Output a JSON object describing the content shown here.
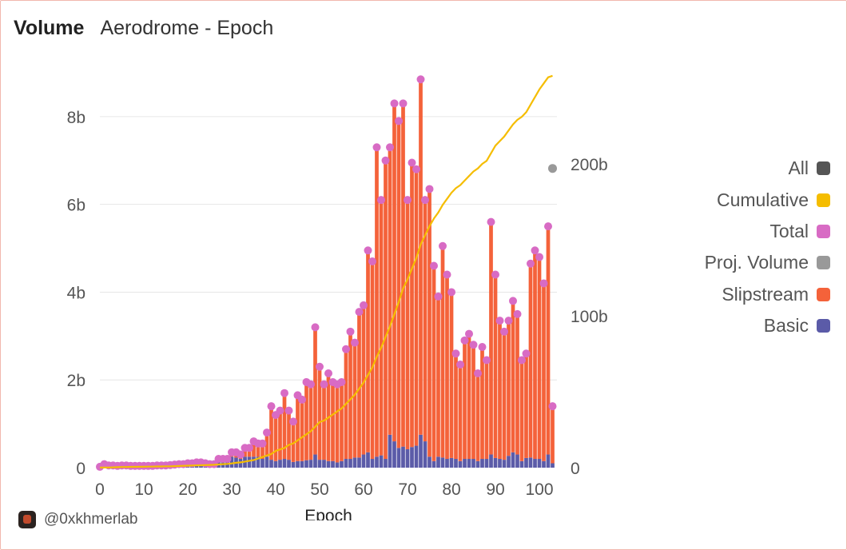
{
  "header": {
    "title": "Volume",
    "subtitle": "Aerodrome - Epoch"
  },
  "footer": {
    "handle": "@0xkhmerlab"
  },
  "legend": [
    {
      "label": "All",
      "color": "#555555"
    },
    {
      "label": "Cumulative",
      "color": "#f5bd00"
    },
    {
      "label": "Total",
      "color": "#d86bc4"
    },
    {
      "label": "Proj. Volume",
      "color": "#999999"
    },
    {
      "label": "Slipstream",
      "color": "#f4623a"
    },
    {
      "label": "Basic",
      "color": "#5b5ba8"
    }
  ],
  "chart_data": {
    "type": "bar",
    "xlabel": "Epoch",
    "ylabel": "",
    "xlim": [
      0,
      104
    ],
    "ylim": [
      0,
      9
    ],
    "y2lim": [
      0,
      260
    ],
    "x_ticks": [
      "0",
      "10",
      "20",
      "30",
      "40",
      "50",
      "60",
      "70",
      "80",
      "90",
      "100"
    ],
    "y_ticks": [
      "0",
      "2b",
      "4b",
      "6b",
      "8b"
    ],
    "y2_ticks": [
      "0",
      "100b",
      "200b"
    ],
    "grid": true,
    "legend_position": "right",
    "x": [
      0,
      1,
      2,
      3,
      4,
      5,
      6,
      7,
      8,
      9,
      10,
      11,
      12,
      13,
      14,
      15,
      16,
      17,
      18,
      19,
      20,
      21,
      22,
      23,
      24,
      25,
      26,
      27,
      28,
      29,
      30,
      31,
      32,
      33,
      34,
      35,
      36,
      37,
      38,
      39,
      40,
      41,
      42,
      43,
      44,
      45,
      46,
      47,
      48,
      49,
      50,
      51,
      52,
      53,
      54,
      55,
      56,
      57,
      58,
      59,
      60,
      61,
      62,
      63,
      64,
      65,
      66,
      67,
      68,
      69,
      70,
      71,
      72,
      73,
      74,
      75,
      76,
      77,
      78,
      79,
      80,
      81,
      82,
      83,
      84,
      85,
      86,
      87,
      88,
      89,
      90,
      91,
      92,
      93,
      94,
      95,
      96,
      97,
      98,
      99,
      100,
      101,
      102,
      103
    ],
    "series": [
      {
        "name": "Total",
        "values": [
          0.02,
          0.08,
          0.05,
          0.05,
          0.04,
          0.05,
          0.05,
          0.04,
          0.04,
          0.04,
          0.04,
          0.04,
          0.04,
          0.05,
          0.05,
          0.05,
          0.06,
          0.07,
          0.08,
          0.08,
          0.1,
          0.1,
          0.12,
          0.12,
          0.1,
          0.08,
          0.08,
          0.2,
          0.2,
          0.2,
          0.35,
          0.35,
          0.3,
          0.45,
          0.45,
          0.6,
          0.55,
          0.55,
          0.8,
          1.4,
          1.2,
          1.3,
          1.7,
          1.3,
          1.05,
          1.65,
          1.55,
          1.95,
          1.9,
          3.2,
          2.3,
          1.9,
          2.15,
          1.95,
          1.9,
          1.95,
          2.7,
          3.1,
          2.85,
          3.55,
          3.7,
          4.95,
          4.7,
          7.3,
          6.1,
          7.0,
          7.3,
          8.3,
          7.9,
          8.3,
          6.1,
          6.95,
          6.8,
          8.85,
          6.1,
          6.35,
          4.6,
          3.9,
          5.05,
          4.4,
          4.0,
          2.6,
          2.35,
          2.9,
          3.05,
          2.8,
          2.15,
          2.75,
          2.45,
          5.6,
          4.4,
          3.35,
          3.1,
          3.35,
          3.8,
          3.5,
          2.45,
          2.6,
          4.65,
          4.95,
          4.8,
          4.2,
          5.5,
          1.4
        ]
      },
      {
        "name": "Slipstream",
        "values": [
          0,
          0,
          0,
          0,
          0,
          0,
          0,
          0,
          0,
          0,
          0,
          0,
          0,
          0,
          0,
          0,
          0,
          0,
          0,
          0,
          0,
          0,
          0,
          0,
          0,
          0,
          0,
          0.05,
          0.05,
          0.08,
          0.1,
          0.12,
          0.1,
          0.2,
          0.2,
          0.35,
          0.3,
          0.35,
          0.55,
          1.22,
          1.05,
          1.12,
          1.5,
          1.12,
          0.92,
          1.5,
          1.4,
          1.78,
          1.72,
          2.9,
          2.12,
          1.72,
          2.0,
          1.8,
          1.78,
          1.8,
          2.5,
          2.9,
          2.62,
          3.32,
          3.4,
          4.6,
          4.5,
          7.05,
          5.82,
          6.8,
          6.55,
          7.7,
          7.45,
          7.82,
          5.68,
          6.48,
          6.3,
          8.1,
          5.5,
          6.1,
          4.45,
          3.65,
          4.82,
          4.2,
          3.78,
          2.4,
          2.2,
          2.7,
          2.85,
          2.6,
          2.0,
          2.55,
          2.25,
          5.3,
          4.18,
          3.15,
          2.92,
          3.08,
          3.45,
          3.2,
          2.3,
          2.38,
          4.42,
          4.75,
          4.6,
          4.05,
          5.2,
          1.3
        ]
      },
      {
        "name": "Basic",
        "values": [
          0.02,
          0.08,
          0.05,
          0.05,
          0.04,
          0.05,
          0.05,
          0.04,
          0.04,
          0.04,
          0.04,
          0.04,
          0.04,
          0.05,
          0.05,
          0.05,
          0.06,
          0.07,
          0.08,
          0.08,
          0.1,
          0.1,
          0.12,
          0.12,
          0.1,
          0.08,
          0.08,
          0.15,
          0.15,
          0.12,
          0.25,
          0.23,
          0.2,
          0.25,
          0.25,
          0.25,
          0.25,
          0.2,
          0.25,
          0.18,
          0.15,
          0.18,
          0.2,
          0.18,
          0.13,
          0.15,
          0.15,
          0.17,
          0.18,
          0.3,
          0.18,
          0.18,
          0.15,
          0.15,
          0.12,
          0.15,
          0.2,
          0.2,
          0.23,
          0.23,
          0.3,
          0.35,
          0.2,
          0.25,
          0.28,
          0.2,
          0.75,
          0.6,
          0.45,
          0.48,
          0.42,
          0.47,
          0.5,
          0.75,
          0.6,
          0.25,
          0.15,
          0.25,
          0.23,
          0.2,
          0.22,
          0.2,
          0.15,
          0.2,
          0.2,
          0.2,
          0.15,
          0.2,
          0.2,
          0.3,
          0.22,
          0.2,
          0.18,
          0.27,
          0.35,
          0.3,
          0.15,
          0.22,
          0.23,
          0.2,
          0.2,
          0.15,
          0.3,
          0.1
        ]
      },
      {
        "name": "Cumulative",
        "values": [
          0.1,
          0.1,
          0.1,
          0.2,
          0.3,
          0.4,
          0.4,
          0.5,
          0.5,
          0.6,
          0.6,
          0.7,
          0.7,
          0.8,
          0.8,
          0.9,
          0.9,
          1.0,
          1.1,
          1.2,
          1.3,
          1.4,
          1.5,
          1.6,
          1.7,
          1.8,
          1.9,
          2.1,
          2.3,
          2.5,
          2.8,
          3.2,
          3.5,
          4,
          4.5,
          5,
          6,
          7,
          8,
          9,
          11,
          12,
          13,
          15,
          16,
          18,
          20,
          22,
          24,
          27,
          30,
          31,
          33,
          35,
          37,
          39,
          42,
          45,
          48,
          52,
          56,
          61,
          66,
          73,
          79,
          86,
          93,
          101,
          109,
          118,
          124,
          131,
          138,
          147,
          153,
          159,
          164,
          168,
          173,
          177,
          181,
          184,
          186,
          189,
          192,
          195,
          197,
          200,
          202,
          207,
          212,
          215,
          218,
          222,
          226,
          229,
          231,
          234,
          239,
          244,
          249,
          253,
          257,
          258
        ]
      },
      {
        "name": "Proj. Volume",
        "values": [
          null,
          null,
          null,
          null,
          null,
          null,
          null,
          null,
          null,
          null,
          null,
          null,
          null,
          null,
          null,
          null,
          null,
          null,
          null,
          null,
          null,
          null,
          null,
          null,
          null,
          null,
          null,
          null,
          null,
          null,
          null,
          null,
          null,
          null,
          null,
          null,
          null,
          null,
          null,
          null,
          null,
          null,
          null,
          null,
          null,
          null,
          null,
          null,
          null,
          null,
          null,
          null,
          null,
          null,
          null,
          null,
          null,
          null,
          null,
          null,
          null,
          null,
          null,
          null,
          null,
          null,
          null,
          null,
          null,
          null,
          null,
          null,
          null,
          null,
          null,
          null,
          null,
          null,
          null,
          null,
          null,
          null,
          null,
          null,
          null,
          null,
          null,
          null,
          null,
          null,
          null,
          null,
          null,
          null,
          null,
          null,
          null,
          null,
          null,
          null,
          null,
          null,
          null,
          197
        ]
      }
    ]
  }
}
